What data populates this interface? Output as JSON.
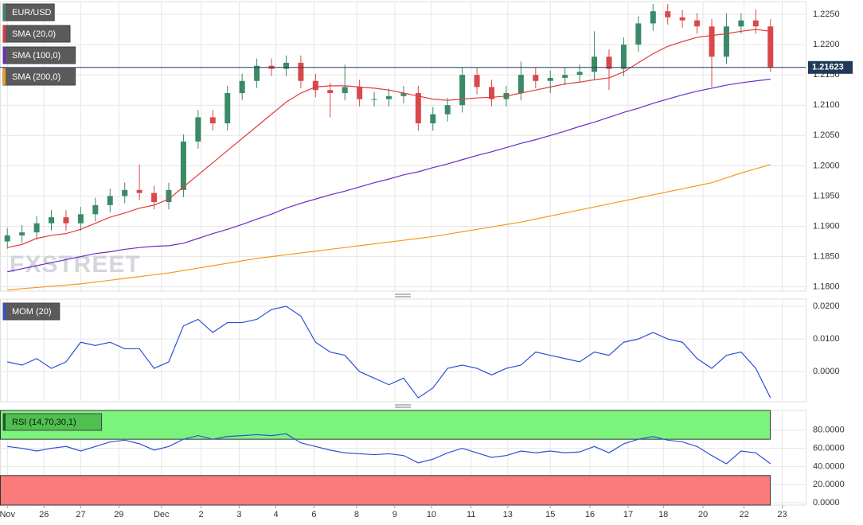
{
  "chart_data": [
    {
      "type": "candlestick",
      "symbol": "EUR/USD",
      "watermark": "FXSTREET",
      "up_color": "#3a8a68",
      "down_color": "#d9484a",
      "open": [
        1.1875,
        1.1885,
        1.189,
        1.1905,
        1.1915,
        1.1905,
        1.192,
        1.1935,
        1.195,
        1.196,
        1.1955,
        1.194,
        1.196,
        1.204,
        1.208,
        1.207,
        1.212,
        1.214,
        1.2165,
        1.216,
        1.217,
        1.214,
        1.2125,
        1.212,
        1.213,
        1.211,
        1.211,
        1.2115,
        1.212,
        1.207,
        1.2085,
        1.21,
        1.215,
        1.213,
        1.211,
        1.212,
        1.215,
        1.214,
        1.2145,
        1.215,
        1.2155,
        1.218,
        1.216,
        1.22,
        1.2235,
        1.2255,
        1.2245,
        1.224,
        1.223,
        1.218,
        1.223,
        1.224,
        1.223
      ],
      "high": [
        1.1897,
        1.1902,
        1.1917,
        1.1927,
        1.1927,
        1.1932,
        1.1947,
        1.1962,
        1.1972,
        1.2002,
        1.1967,
        1.1972,
        1.2052,
        1.2092,
        1.2092,
        1.2132,
        1.2152,
        1.2177,
        1.2177,
        1.2182,
        1.2182,
        1.2152,
        1.2137,
        1.2167,
        1.2142,
        1.2122,
        1.2127,
        1.2132,
        1.2132,
        1.2097,
        1.2112,
        1.2162,
        1.2162,
        1.2142,
        1.2132,
        1.2172,
        1.2162,
        1.2157,
        1.2162,
        1.2167,
        1.2222,
        1.2192,
        1.2212,
        1.2247,
        1.2267,
        1.2267,
        1.2257,
        1.2252,
        1.2242,
        1.2252,
        1.2252,
        1.2258,
        1.2242
      ],
      "low": [
        1.1863,
        1.1873,
        1.1878,
        1.1893,
        1.1893,
        1.1893,
        1.1908,
        1.1923,
        1.1938,
        1.1943,
        1.1928,
        1.1928,
        1.1948,
        1.2028,
        1.2058,
        1.2058,
        1.2108,
        1.2128,
        1.2148,
        1.2148,
        1.2128,
        1.2113,
        1.208,
        1.2108,
        1.2098,
        1.2098,
        1.2098,
        1.2103,
        1.2058,
        1.2058,
        1.2073,
        1.2088,
        1.2118,
        1.2098,
        1.2098,
        1.2108,
        1.2128,
        1.212,
        1.2133,
        1.2138,
        1.2143,
        1.2125,
        1.2148,
        1.2188,
        1.2223,
        1.2233,
        1.2228,
        1.2218,
        1.213,
        1.2168,
        1.2218,
        1.2218,
        1.2155
      ],
      "close": [
        1.1885,
        1.189,
        1.1905,
        1.1915,
        1.1905,
        1.192,
        1.1935,
        1.195,
        1.196,
        1.1955,
        1.194,
        1.196,
        1.204,
        1.208,
        1.207,
        1.212,
        1.214,
        1.2165,
        1.216,
        1.217,
        1.214,
        1.2125,
        1.212,
        1.213,
        1.211,
        1.211,
        1.2115,
        1.212,
        1.207,
        1.2085,
        1.21,
        1.215,
        1.213,
        1.211,
        1.212,
        1.215,
        1.214,
        1.2145,
        1.215,
        1.2155,
        1.218,
        1.216,
        1.22,
        1.2235,
        1.2255,
        1.2245,
        1.224,
        1.223,
        1.218,
        1.223,
        1.224,
        1.223,
        1.2162
      ],
      "series": [
        {
          "name": "SMA (20,0)",
          "color": "#e23b3b",
          "values": [
            1.1865,
            1.187,
            1.188,
            1.1885,
            1.1888,
            1.1895,
            1.1905,
            1.1915,
            1.1922,
            1.193,
            1.1935,
            1.1945,
            1.1965,
            1.1985,
            1.2005,
            1.2025,
            1.2045,
            1.2065,
            1.2085,
            1.2105,
            1.212,
            1.213,
            1.2132,
            1.2132,
            1.213,
            1.2128,
            1.2125,
            1.212,
            1.2115,
            1.211,
            1.2108,
            1.211,
            1.2112,
            1.2113,
            1.2115,
            1.212,
            1.2125,
            1.213,
            1.2135,
            1.2138,
            1.2142,
            1.2145,
            1.2155,
            1.217,
            1.2185,
            1.2197,
            1.2205,
            1.2212,
            1.2215,
            1.2218,
            1.2222,
            1.2225,
            1.2222
          ]
        },
        {
          "name": "SMA (100,0)",
          "color": "#6a2bc8",
          "values": [
            1.1825,
            1.183,
            1.1835,
            1.184,
            1.1845,
            1.185,
            1.1855,
            1.1858,
            1.1862,
            1.1865,
            1.1867,
            1.1868,
            1.1872,
            1.188,
            1.1888,
            1.1895,
            1.1903,
            1.1912,
            1.192,
            1.193,
            1.1938,
            1.1945,
            1.1952,
            1.1958,
            1.1965,
            1.1972,
            1.1978,
            1.1985,
            1.199,
            1.1997,
            1.2003,
            1.201,
            1.2017,
            1.2023,
            1.203,
            1.2037,
            1.2043,
            1.205,
            1.2057,
            1.2065,
            1.2072,
            1.208,
            1.2088,
            1.2095,
            1.2103,
            1.211,
            1.2117,
            1.2123,
            1.2128,
            1.2133,
            1.2137,
            1.214,
            1.2143
          ]
        },
        {
          "name": "SMA (200,0)",
          "color": "#f39a1e",
          "values": [
            1.1795,
            1.1797,
            1.1799,
            1.1801,
            1.1803,
            1.1805,
            1.1808,
            1.1811,
            1.1814,
            1.1817,
            1.182,
            1.1823,
            1.1827,
            1.1831,
            1.1835,
            1.1839,
            1.1843,
            1.1847,
            1.185,
            1.1853,
            1.1856,
            1.1859,
            1.1862,
            1.1865,
            1.1868,
            1.1871,
            1.1874,
            1.1877,
            1.188,
            1.1883,
            1.1887,
            1.1891,
            1.1895,
            1.1899,
            1.1903,
            1.1907,
            1.1912,
            1.1917,
            1.1922,
            1.1927,
            1.1932,
            1.1937,
            1.1942,
            1.1947,
            1.1952,
            1.1957,
            1.1962,
            1.1967,
            1.1972,
            1.198,
            1.1988,
            1.1995,
            1.2002
          ]
        }
      ],
      "last_price": 1.21623,
      "ylim": [
        1.1793,
        1.2271
      ],
      "yticks": [
        {
          "value": 1.225,
          "label": "1.2250"
        },
        {
          "value": 1.22,
          "label": "1.2200"
        },
        {
          "value": 1.215,
          "label": "1.2150"
        },
        {
          "value": 1.21,
          "label": "1.2100"
        },
        {
          "value": 1.205,
          "label": "1.2050"
        },
        {
          "value": 1.2,
          "label": "1.2000"
        },
        {
          "value": 1.195,
          "label": "1.1950"
        },
        {
          "value": 1.19,
          "label": "1.1900"
        },
        {
          "value": 1.185,
          "label": "1.1850"
        },
        {
          "value": 1.18,
          "label": "1.1800"
        }
      ]
    },
    {
      "type": "line",
      "series": [
        {
          "name": "MOM (20)",
          "color": "#2a52d8",
          "values": [
            0.003,
            0.002,
            0.004,
            0.001,
            0.003,
            0.009,
            0.008,
            0.009,
            0.007,
            0.007,
            0.001,
            0.003,
            0.014,
            0.016,
            0.012,
            0.015,
            0.015,
            0.016,
            0.019,
            0.02,
            0.017,
            0.009,
            0.006,
            0.005,
            0.0,
            -0.002,
            -0.004,
            -0.002,
            -0.008,
            -0.005,
            0.001,
            0.002,
            0.001,
            -0.001,
            0.001,
            0.002,
            0.006,
            0.005,
            0.004,
            0.003,
            0.006,
            0.005,
            0.009,
            0.01,
            0.012,
            0.01,
            0.009,
            0.004,
            0.001,
            0.005,
            0.006,
            0.001,
            -0.008
          ]
        }
      ],
      "ylim": [
        -0.0092,
        0.0222
      ],
      "yticks": [
        {
          "value": 0.02,
          "label": "0.0200"
        },
        {
          "value": 0.01,
          "label": "0.0100"
        },
        {
          "value": 0,
          "label": "0.0000"
        }
      ]
    },
    {
      "type": "rsi",
      "series": [
        {
          "name": "RSI (14,70,30,1)",
          "color": "#2a52d8",
          "values": [
            62,
            60,
            57,
            60,
            62,
            57,
            62,
            67,
            69,
            65,
            58,
            62,
            70,
            74,
            70,
            73,
            74,
            75,
            74,
            76,
            66,
            62,
            58,
            55,
            54,
            53,
            54,
            52,
            44,
            48,
            55,
            60,
            55,
            50,
            52,
            57,
            55,
            57,
            55,
            56,
            62,
            55,
            65,
            70,
            73,
            69,
            67,
            62,
            52,
            43,
            57,
            55,
            43
          ]
        }
      ],
      "overbought": 70,
      "oversold": 30,
      "overbought_color": "#7cf47c",
      "oversold_color": "#f97b7b",
      "ylim": [
        -2.6,
        101.7
      ],
      "yticks": [
        {
          "value": 80,
          "label": "80.0000"
        },
        {
          "value": 60,
          "label": "60.0000"
        },
        {
          "value": 40,
          "label": "40.0000"
        },
        {
          "value": 20,
          "label": "20.0000"
        },
        {
          "value": 0,
          "label": "0.0000"
        }
      ],
      "xlim": [
        -0.5,
        54.4
      ],
      "xticks": [
        {
          "value": 0,
          "label": "Nov"
        },
        {
          "value": 2.5,
          "label": "26"
        },
        {
          "value": 5,
          "label": "27"
        },
        {
          "value": 7.6,
          "label": "29"
        },
        {
          "value": 10.5,
          "label": "Dec"
        },
        {
          "value": 13.2,
          "label": "2"
        },
        {
          "value": 15.8,
          "label": "3"
        },
        {
          "value": 18.3,
          "label": "4"
        },
        {
          "value": 20.9,
          "label": "6"
        },
        {
          "value": 23.8,
          "label": "8"
        },
        {
          "value": 26.4,
          "label": "9"
        },
        {
          "value": 28.9,
          "label": "10"
        },
        {
          "value": 31.6,
          "label": "11"
        },
        {
          "value": 34.1,
          "label": "13"
        },
        {
          "value": 37,
          "label": "15"
        },
        {
          "value": 39.7,
          "label": "16"
        },
        {
          "value": 42.3,
          "label": "17"
        },
        {
          "value": 44.7,
          "label": "18"
        },
        {
          "value": 47.4,
          "label": "20"
        },
        {
          "value": 50.2,
          "label": "22"
        },
        {
          "value": 52.8,
          "label": "23"
        }
      ]
    }
  ]
}
